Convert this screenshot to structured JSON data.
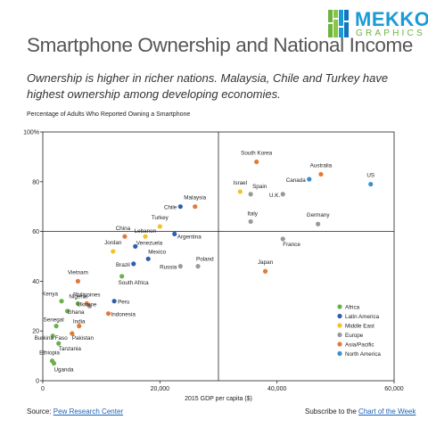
{
  "brand": {
    "name_line1": "MEKKO",
    "name_line2": "GRAPHICS",
    "logo_colors": [
      "#6cb33f",
      "#8cc63f",
      "#1a9bd7",
      "#0f75bc"
    ]
  },
  "header": {
    "title": "Smartphone Ownership and National Income",
    "subtitle": "Ownership is higher in richer nations. Malaysia, Chile and Turkey have highest ownership among developing economies."
  },
  "footer": {
    "source_prefix": "Source: ",
    "source_link": "Pew Research Center",
    "subscribe_prefix": "Subscribe to the ",
    "subscribe_link": "Chart of the Week"
  },
  "chart_data": {
    "type": "scatter",
    "title": "Smartphone Ownership and National Income",
    "xlabel": "2015 GDP per capita ($)",
    "ylabel": "Percentage of Adults Who Reported Owning a Smartphone",
    "xlim": [
      0,
      60000
    ],
    "ylim": [
      0,
      100
    ],
    "x_ticks": [
      0,
      20000,
      40000,
      60000
    ],
    "x_tick_labels": [
      "0",
      "20,000",
      "40,000",
      "60,000"
    ],
    "y_ticks": [
      0,
      20,
      40,
      60,
      80,
      100
    ],
    "y_tick_labels": [
      "0",
      "20",
      "40",
      "60",
      "80",
      "100%"
    ],
    "reference_lines": {
      "x": 30000,
      "y": 60
    },
    "grid": false,
    "legend_position": "bottom-right",
    "regions": [
      {
        "name": "Africa",
        "color": "#6ab04c"
      },
      {
        "name": "Latin America",
        "color": "#2e5fae"
      },
      {
        "name": "Middle East",
        "color": "#f2c12e"
      },
      {
        "name": "Europe",
        "color": "#999999"
      },
      {
        "name": "Asia/Pacific",
        "color": "#e07b39"
      },
      {
        "name": "North America",
        "color": "#3a8fd0"
      }
    ],
    "points": [
      {
        "label": "South Korea",
        "x": 36500,
        "y": 88,
        "region": "Asia/Pacific"
      },
      {
        "label": "Australia",
        "x": 47500,
        "y": 83,
        "region": "Asia/Pacific"
      },
      {
        "label": "Canada",
        "x": 45500,
        "y": 81,
        "region": "North America"
      },
      {
        "label": "US",
        "x": 56000,
        "y": 79,
        "region": "North America"
      },
      {
        "label": "Israel",
        "x": 33700,
        "y": 76,
        "region": "Middle East"
      },
      {
        "label": "Spain",
        "x": 35500,
        "y": 75,
        "region": "Europe"
      },
      {
        "label": "U.K.",
        "x": 41000,
        "y": 75,
        "region": "Europe"
      },
      {
        "label": "Chile",
        "x": 23500,
        "y": 70,
        "region": "Latin America"
      },
      {
        "label": "Malaysia",
        "x": 26000,
        "y": 70,
        "region": "Asia/Pacific"
      },
      {
        "label": "Italy",
        "x": 35500,
        "y": 64,
        "region": "Europe"
      },
      {
        "label": "Germany",
        "x": 47000,
        "y": 63,
        "region": "Europe"
      },
      {
        "label": "Turkey",
        "x": 20000,
        "y": 62,
        "region": "Middle East"
      },
      {
        "label": "China",
        "x": 14000,
        "y": 58,
        "region": "Asia/Pacific"
      },
      {
        "label": "Lebanon",
        "x": 17500,
        "y": 58,
        "region": "Middle East"
      },
      {
        "label": "Argentina",
        "x": 22500,
        "y": 59,
        "region": "Latin America"
      },
      {
        "label": "France",
        "x": 41000,
        "y": 57,
        "region": "Europe"
      },
      {
        "label": "Jordan",
        "x": 12000,
        "y": 52,
        "region": "Middle East"
      },
      {
        "label": "Venezuela",
        "x": 15800,
        "y": 54,
        "region": "Latin America"
      },
      {
        "label": "Mexico",
        "x": 18000,
        "y": 49,
        "region": "Latin America"
      },
      {
        "label": "Brazil",
        "x": 15500,
        "y": 47,
        "region": "Latin America"
      },
      {
        "label": "Russia",
        "x": 23500,
        "y": 46,
        "region": "Europe"
      },
      {
        "label": "Poland",
        "x": 26500,
        "y": 46,
        "region": "Europe"
      },
      {
        "label": "Japan",
        "x": 38000,
        "y": 44,
        "region": "Asia/Pacific"
      },
      {
        "label": "Vietnam",
        "x": 6000,
        "y": 40,
        "region": "Asia/Pacific"
      },
      {
        "label": "South Africa",
        "x": 13500,
        "y": 42,
        "region": "Africa"
      },
      {
        "label": "Kenya",
        "x": 3200,
        "y": 32,
        "region": "Africa"
      },
      {
        "label": "Nigeria",
        "x": 6000,
        "y": 31,
        "region": "Africa"
      },
      {
        "label": "Philippines",
        "x": 7500,
        "y": 31,
        "region": "Asia/Pacific"
      },
      {
        "label": "Peru",
        "x": 12200,
        "y": 32,
        "region": "Latin America"
      },
      {
        "label": "Ghana",
        "x": 4200,
        "y": 28,
        "region": "Africa"
      },
      {
        "label": "Ukraine",
        "x": 8000,
        "y": 30,
        "region": "Europe"
      },
      {
        "label": "Indonesia",
        "x": 11200,
        "y": 27,
        "region": "Asia/Pacific"
      },
      {
        "label": "India",
        "x": 6200,
        "y": 22,
        "region": "Asia/Pacific"
      },
      {
        "label": "Senegal",
        "x": 2300,
        "y": 22,
        "region": "Africa"
      },
      {
        "label": "Pakistan",
        "x": 5000,
        "y": 19,
        "region": "Asia/Pacific"
      },
      {
        "label": "Burkina Faso",
        "x": 1700,
        "y": 18,
        "region": "Africa"
      },
      {
        "label": "Tanzania",
        "x": 2700,
        "y": 15,
        "region": "Africa"
      },
      {
        "label": "Ethiopia",
        "x": 1600,
        "y": 8,
        "region": "Africa"
      },
      {
        "label": "Uganda",
        "x": 1900,
        "y": 7,
        "region": "Africa"
      }
    ]
  }
}
